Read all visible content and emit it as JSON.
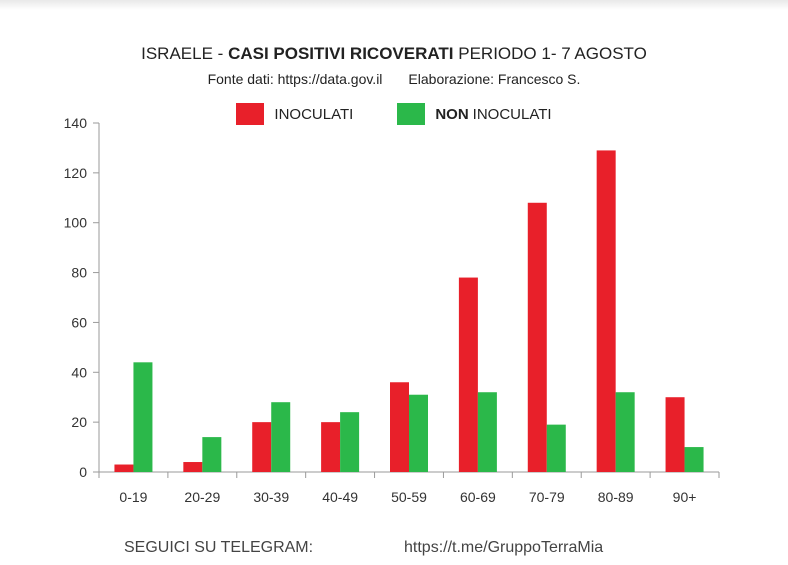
{
  "header": {
    "title_prefix": "ISRAELE  -",
    "title_main": "CASI POSITIVI RICOVERATI",
    "title_suffix": "PERIODO  1- 7 AGOSTO",
    "source": "Fonte dati: https://data.gov.il",
    "author": "Elaborazione: Francesco S."
  },
  "legend": {
    "vaccinated": "INOCULATI",
    "unvaccinated_bold": "NON",
    "unvaccinated_rest": "INOCULATI"
  },
  "footer": {
    "left": "SEGUICI SU TELEGRAM:",
    "right": "https://t.me/GruppoTerraMia"
  },
  "colors": {
    "vaccinated": "#e8202a",
    "unvaccinated": "#2bb84a",
    "axis": "#9a9a9a"
  },
  "chart_data": {
    "type": "bar",
    "title": "ISRAELE - CASI POSITIVI RICOVERATI PERIODO 1- 7 AGOSTO",
    "categories": [
      "0-19",
      "20-29",
      "30-39",
      "40-49",
      "50-59",
      "60-69",
      "70-79",
      "80-89",
      "90+"
    ],
    "series": [
      {
        "name": "INOCULATI",
        "values": [
          3,
          4,
          20,
          20,
          36,
          78,
          108,
          129,
          30
        ]
      },
      {
        "name": "NON INOCULATI",
        "values": [
          44,
          14,
          28,
          24,
          31,
          32,
          19,
          32,
          10
        ]
      }
    ],
    "ylim": [
      0,
      140
    ],
    "yticks": [
      0,
      20,
      40,
      60,
      80,
      100,
      120,
      140
    ],
    "grid": false,
    "legend_position": "top-center"
  }
}
